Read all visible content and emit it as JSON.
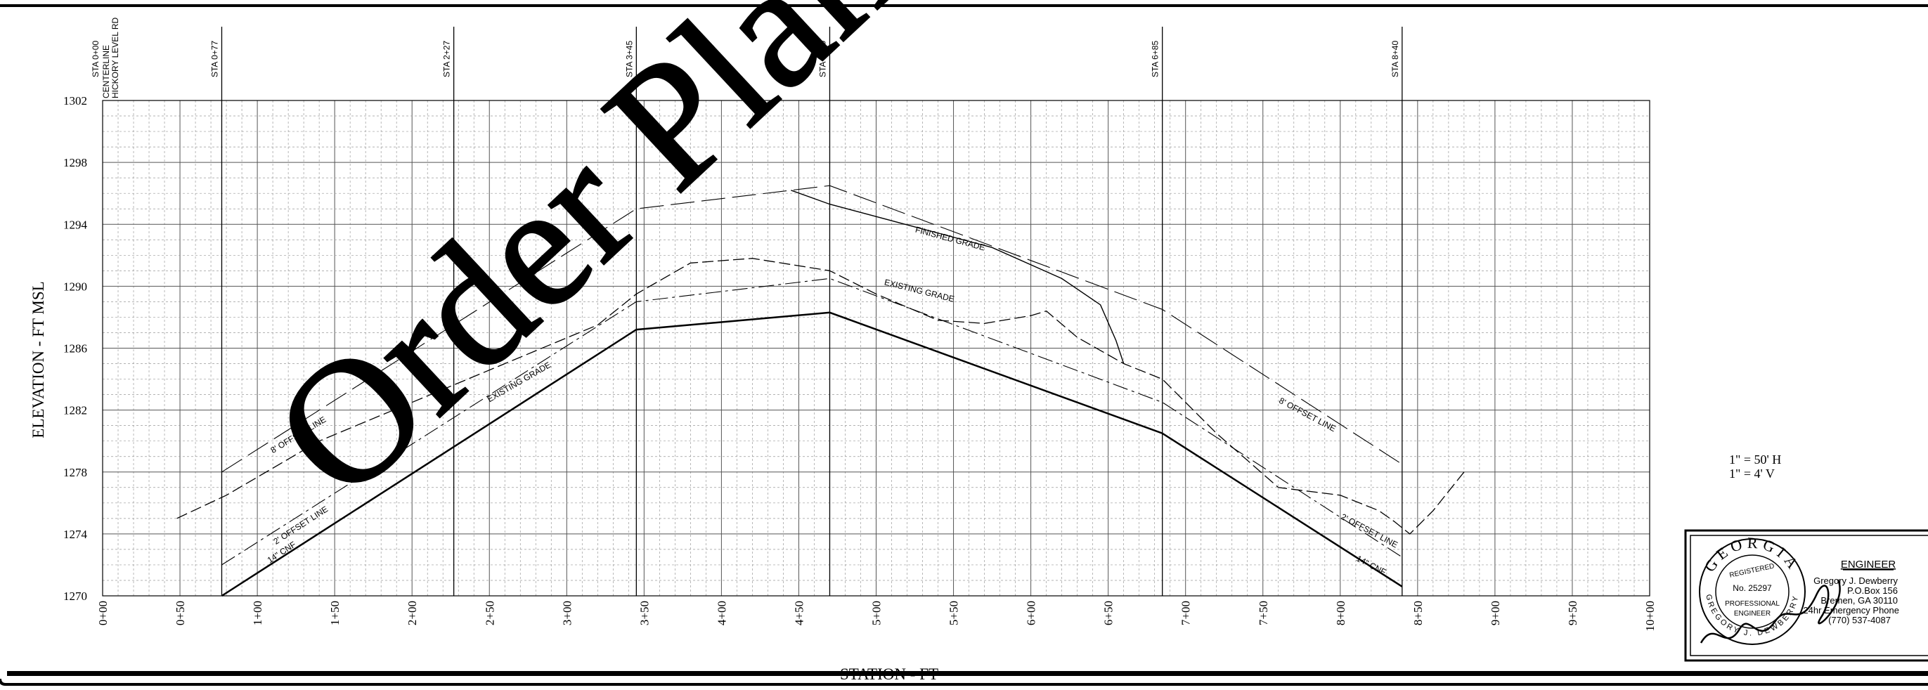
{
  "profile": {
    "elevation_axis_label": "ELEVATION - FT MSL",
    "station_axis_label": "STATION - FT",
    "elevation_ticks": [
      1270,
      1274,
      1278,
      1282,
      1286,
      1290,
      1294,
      1298,
      1302
    ],
    "station_ticks": [
      "0+00",
      "0+50",
      "1+00",
      "1+50",
      "2+00",
      "2+50",
      "3+00",
      "3+50",
      "4+00",
      "4+50",
      "5+00",
      "5+50",
      "6+00",
      "6+50",
      "7+00",
      "7+50",
      "8+00",
      "8+50",
      "9+00",
      "9+50",
      "10+00"
    ],
    "stations": [
      {
        "label": "STA 0+00",
        "station": 0,
        "extra": [
          "CENTERLINE",
          "HICKORY LEVEL RD"
        ]
      },
      {
        "label": "STA 0+77",
        "station": 77
      },
      {
        "label": "STA 2+27",
        "station": 227
      },
      {
        "label": "STA 3+45",
        "station": 345
      },
      {
        "label": "STA 4+70",
        "station": 470
      },
      {
        "label": "STA 6+85",
        "station": 685
      },
      {
        "label": "STA 8+40",
        "station": 840
      }
    ],
    "x_range": [
      0,
      1000
    ],
    "y_range": [
      1270,
      1302
    ],
    "scale_notes": [
      "1\" = 50' H",
      "1\" =  4' V"
    ]
  },
  "profile_lines": [
    {
      "id": "cnf-14",
      "style": "solid-heavy",
      "points": [
        [
          77,
          1270
        ],
        [
          345,
          1287.2
        ],
        [
          470,
          1288.3
        ],
        [
          685,
          1280.5
        ],
        [
          840,
          1270.6
        ]
      ]
    },
    {
      "id": "finished-grade",
      "style": "solid",
      "points": [
        [
          445,
          1296.2
        ],
        [
          470,
          1295.3
        ],
        [
          575,
          1292.5
        ],
        [
          620,
          1290.5
        ],
        [
          645,
          1288.8
        ],
        [
          655,
          1286.5
        ],
        [
          660,
          1285
        ]
      ]
    },
    {
      "id": "existing-grade",
      "style": "dash",
      "points": [
        [
          48,
          1275
        ],
        [
          80,
          1276.5
        ],
        [
          140,
          1280
        ],
        [
          200,
          1282.5
        ],
        [
          260,
          1285
        ],
        [
          320,
          1287.5
        ],
        [
          345,
          1289.5
        ],
        [
          380,
          1291.5
        ],
        [
          420,
          1291.8
        ],
        [
          470,
          1291
        ],
        [
          500,
          1289.5
        ],
        [
          540,
          1287.8
        ],
        [
          570,
          1287.6
        ],
        [
          600,
          1288.1
        ],
        [
          610,
          1288.4
        ],
        [
          630,
          1286.7
        ],
        [
          660,
          1285
        ],
        [
          685,
          1284
        ],
        [
          720,
          1280.5
        ],
        [
          760,
          1277
        ],
        [
          800,
          1276.5
        ],
        [
          825,
          1275.5
        ],
        [
          835,
          1274.8
        ],
        [
          845,
          1274
        ],
        [
          860,
          1275.5
        ],
        [
          880,
          1278
        ]
      ]
    },
    {
      "id": "offset-8",
      "style": "long-dash",
      "points": [
        [
          77,
          1278
        ],
        [
          345,
          1295
        ],
        [
          470,
          1296.5
        ],
        [
          685,
          1288.5
        ],
        [
          840,
          1278.5
        ]
      ]
    },
    {
      "id": "offset-2",
      "style": "dash-dot",
      "points": [
        [
          77,
          1272
        ],
        [
          345,
          1289
        ],
        [
          470,
          1290.5
        ],
        [
          685,
          1282.5
        ],
        [
          840,
          1272.5
        ]
      ]
    }
  ],
  "profile_labels": [
    {
      "text": "FINISHED GRADE",
      "at": [
        525,
        1293.5
      ],
      "angle": 15
    },
    {
      "text": "EXISTING GRADE",
      "at": [
        505,
        1290.1
      ],
      "angle": 14
    },
    {
      "text": "EXISTING GRADE",
      "at": [
        250,
        1282.5
      ],
      "angle": -30
    },
    {
      "text": "8' OFFSET LINE",
      "at": [
        110,
        1279.2
      ],
      "angle": -31
    },
    {
      "text": "2' OFFSET LINE",
      "at": [
        112,
        1273.3
      ],
      "angle": -33
    },
    {
      "text": "14\" CNF",
      "at": [
        108,
        1272.1
      ],
      "angle": -33
    },
    {
      "text": "8' OFFSET LINE",
      "at": [
        760,
        1282.5
      ],
      "angle": 28
    },
    {
      "text": "2' OFFSET LINE",
      "at": [
        800,
        1275
      ],
      "angle": 28
    },
    {
      "text": "14\" CNF",
      "at": [
        810,
        1272.3
      ],
      "angle": 28
    }
  ],
  "watermark": {
    "text": "Order Plans @ WWW"
  },
  "engineer_block": {
    "title": "ENGINEER",
    "lines": [
      "Gregory J. Dewberry",
      "P.O.Box 156",
      "Bremen, GA 30110",
      "24hr Emergency Phone",
      "(770) 537-4087"
    ],
    "seal": {
      "state": "GEORGIA",
      "registered": "REGISTERED",
      "number": "No. 25297",
      "profession": "PROFESSIONAL",
      "engineer": "ENGINEER",
      "name": "GREGORY J. DEWBERRY"
    }
  },
  "colors": {
    "ink": "#000000",
    "grid": "#5a5a5a",
    "paper": "#ffffff",
    "watermark_fill": "#ffffff",
    "watermark_stroke": "#000000"
  }
}
